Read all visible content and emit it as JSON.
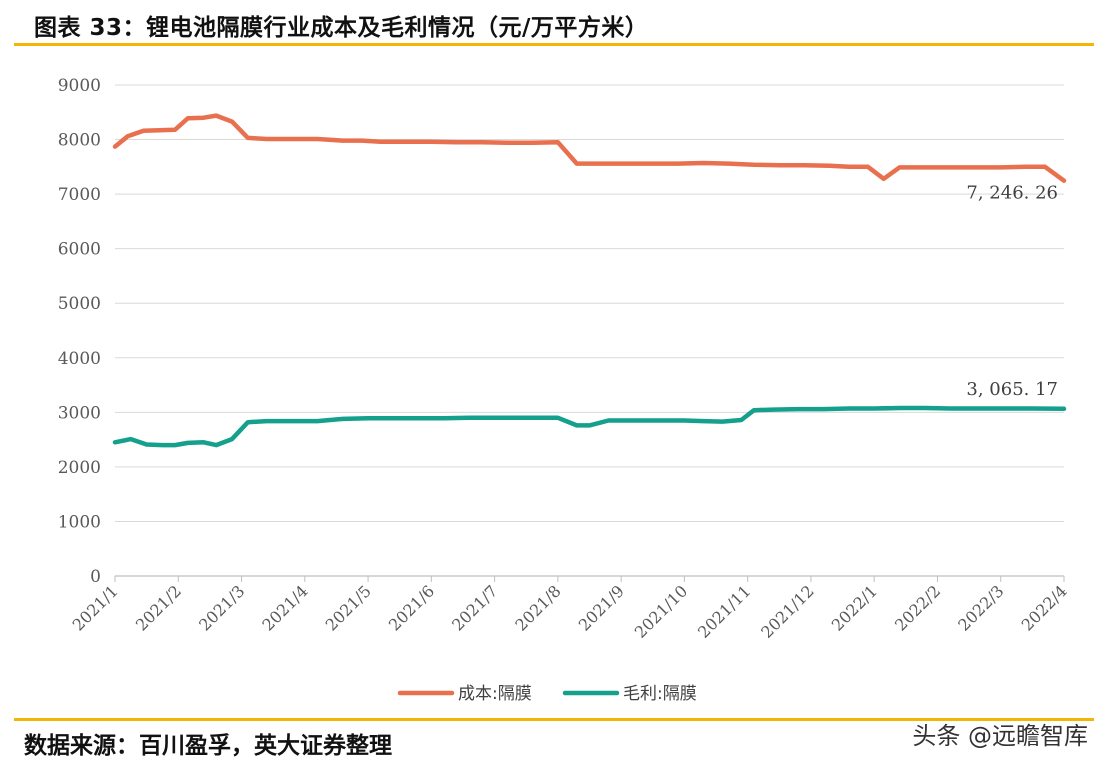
{
  "header": {
    "title": "图表 33：锂电池隔膜行业成本及毛利情况（元/万平方米）"
  },
  "footer": {
    "source": "数据来源：百川盈孚，英大证券整理",
    "watermark": "头条 @远瞻智库"
  },
  "colors": {
    "accent_rule": "#f2b705",
    "series_cost": "#e8704f",
    "series_margin": "#14a08c",
    "grid": "#d9d9d9"
  },
  "chart_data": {
    "type": "line",
    "title": "",
    "xlabel": "",
    "ylabel": "",
    "ylim": [
      0,
      9000
    ],
    "yticks": [
      0,
      1000,
      2000,
      3000,
      4000,
      5000,
      6000,
      7000,
      8000,
      9000
    ],
    "xlim": [
      0,
      15
    ],
    "x_tick_labels": [
      "2021/1",
      "2021/2",
      "2021/3",
      "2021/4",
      "2021/5",
      "2021/6",
      "2021/7",
      "2021/8",
      "2021/9",
      "2021/10",
      "2021/11",
      "2021/12",
      "2022/1",
      "2022/2",
      "2022/3",
      "2022/4"
    ],
    "grid": "horizontal",
    "legend": "bottom-center",
    "series": [
      {
        "name": "成本:隔膜",
        "color": "#e8704f",
        "end_label": "7, 246. 26",
        "points": [
          [
            0.0,
            7870
          ],
          [
            0.2,
            8060
          ],
          [
            0.45,
            8160
          ],
          [
            0.7,
            8170
          ],
          [
            0.95,
            8180
          ],
          [
            1.15,
            8390
          ],
          [
            1.4,
            8400
          ],
          [
            1.6,
            8440
          ],
          [
            1.85,
            8330
          ],
          [
            2.1,
            8030
          ],
          [
            2.4,
            8010
          ],
          [
            2.8,
            8010
          ],
          [
            3.2,
            8010
          ],
          [
            3.6,
            7980
          ],
          [
            3.9,
            7980
          ],
          [
            4.2,
            7960
          ],
          [
            4.6,
            7960
          ],
          [
            5.0,
            7960
          ],
          [
            5.4,
            7950
          ],
          [
            5.8,
            7950
          ],
          [
            6.2,
            7940
          ],
          [
            6.6,
            7940
          ],
          [
            7.0,
            7950
          ],
          [
            7.3,
            7560
          ],
          [
            7.7,
            7560
          ],
          [
            8.1,
            7560
          ],
          [
            8.5,
            7560
          ],
          [
            8.9,
            7560
          ],
          [
            9.3,
            7570
          ],
          [
            9.7,
            7560
          ],
          [
            10.1,
            7540
          ],
          [
            10.5,
            7530
          ],
          [
            10.9,
            7530
          ],
          [
            11.3,
            7520
          ],
          [
            11.6,
            7500
          ],
          [
            11.9,
            7500
          ],
          [
            12.15,
            7280
          ],
          [
            12.4,
            7490
          ],
          [
            12.8,
            7490
          ],
          [
            13.2,
            7490
          ],
          [
            13.6,
            7490
          ],
          [
            14.0,
            7490
          ],
          [
            14.4,
            7500
          ],
          [
            14.7,
            7500
          ],
          [
            15.0,
            7246.26
          ]
        ]
      },
      {
        "name": "毛利:隔膜",
        "color": "#14a08c",
        "end_label": "3, 065. 17",
        "points": [
          [
            0.0,
            2450
          ],
          [
            0.25,
            2510
          ],
          [
            0.5,
            2410
          ],
          [
            0.75,
            2400
          ],
          [
            0.95,
            2400
          ],
          [
            1.15,
            2440
          ],
          [
            1.4,
            2450
          ],
          [
            1.6,
            2400
          ],
          [
            1.85,
            2510
          ],
          [
            2.1,
            2820
          ],
          [
            2.4,
            2840
          ],
          [
            2.8,
            2840
          ],
          [
            3.2,
            2840
          ],
          [
            3.6,
            2880
          ],
          [
            4.0,
            2890
          ],
          [
            4.4,
            2890
          ],
          [
            4.8,
            2890
          ],
          [
            5.2,
            2890
          ],
          [
            5.6,
            2900
          ],
          [
            6.0,
            2900
          ],
          [
            6.4,
            2900
          ],
          [
            6.8,
            2900
          ],
          [
            7.0,
            2900
          ],
          [
            7.3,
            2760
          ],
          [
            7.5,
            2760
          ],
          [
            7.8,
            2850
          ],
          [
            8.2,
            2850
          ],
          [
            8.6,
            2850
          ],
          [
            9.0,
            2850
          ],
          [
            9.3,
            2840
          ],
          [
            9.6,
            2830
          ],
          [
            9.9,
            2860
          ],
          [
            10.1,
            3040
          ],
          [
            10.4,
            3050
          ],
          [
            10.8,
            3060
          ],
          [
            11.2,
            3060
          ],
          [
            11.6,
            3070
          ],
          [
            12.0,
            3070
          ],
          [
            12.4,
            3080
          ],
          [
            12.8,
            3080
          ],
          [
            13.2,
            3070
          ],
          [
            13.6,
            3070
          ],
          [
            14.0,
            3070
          ],
          [
            14.5,
            3070
          ],
          [
            15.0,
            3065.17
          ]
        ]
      }
    ]
  }
}
